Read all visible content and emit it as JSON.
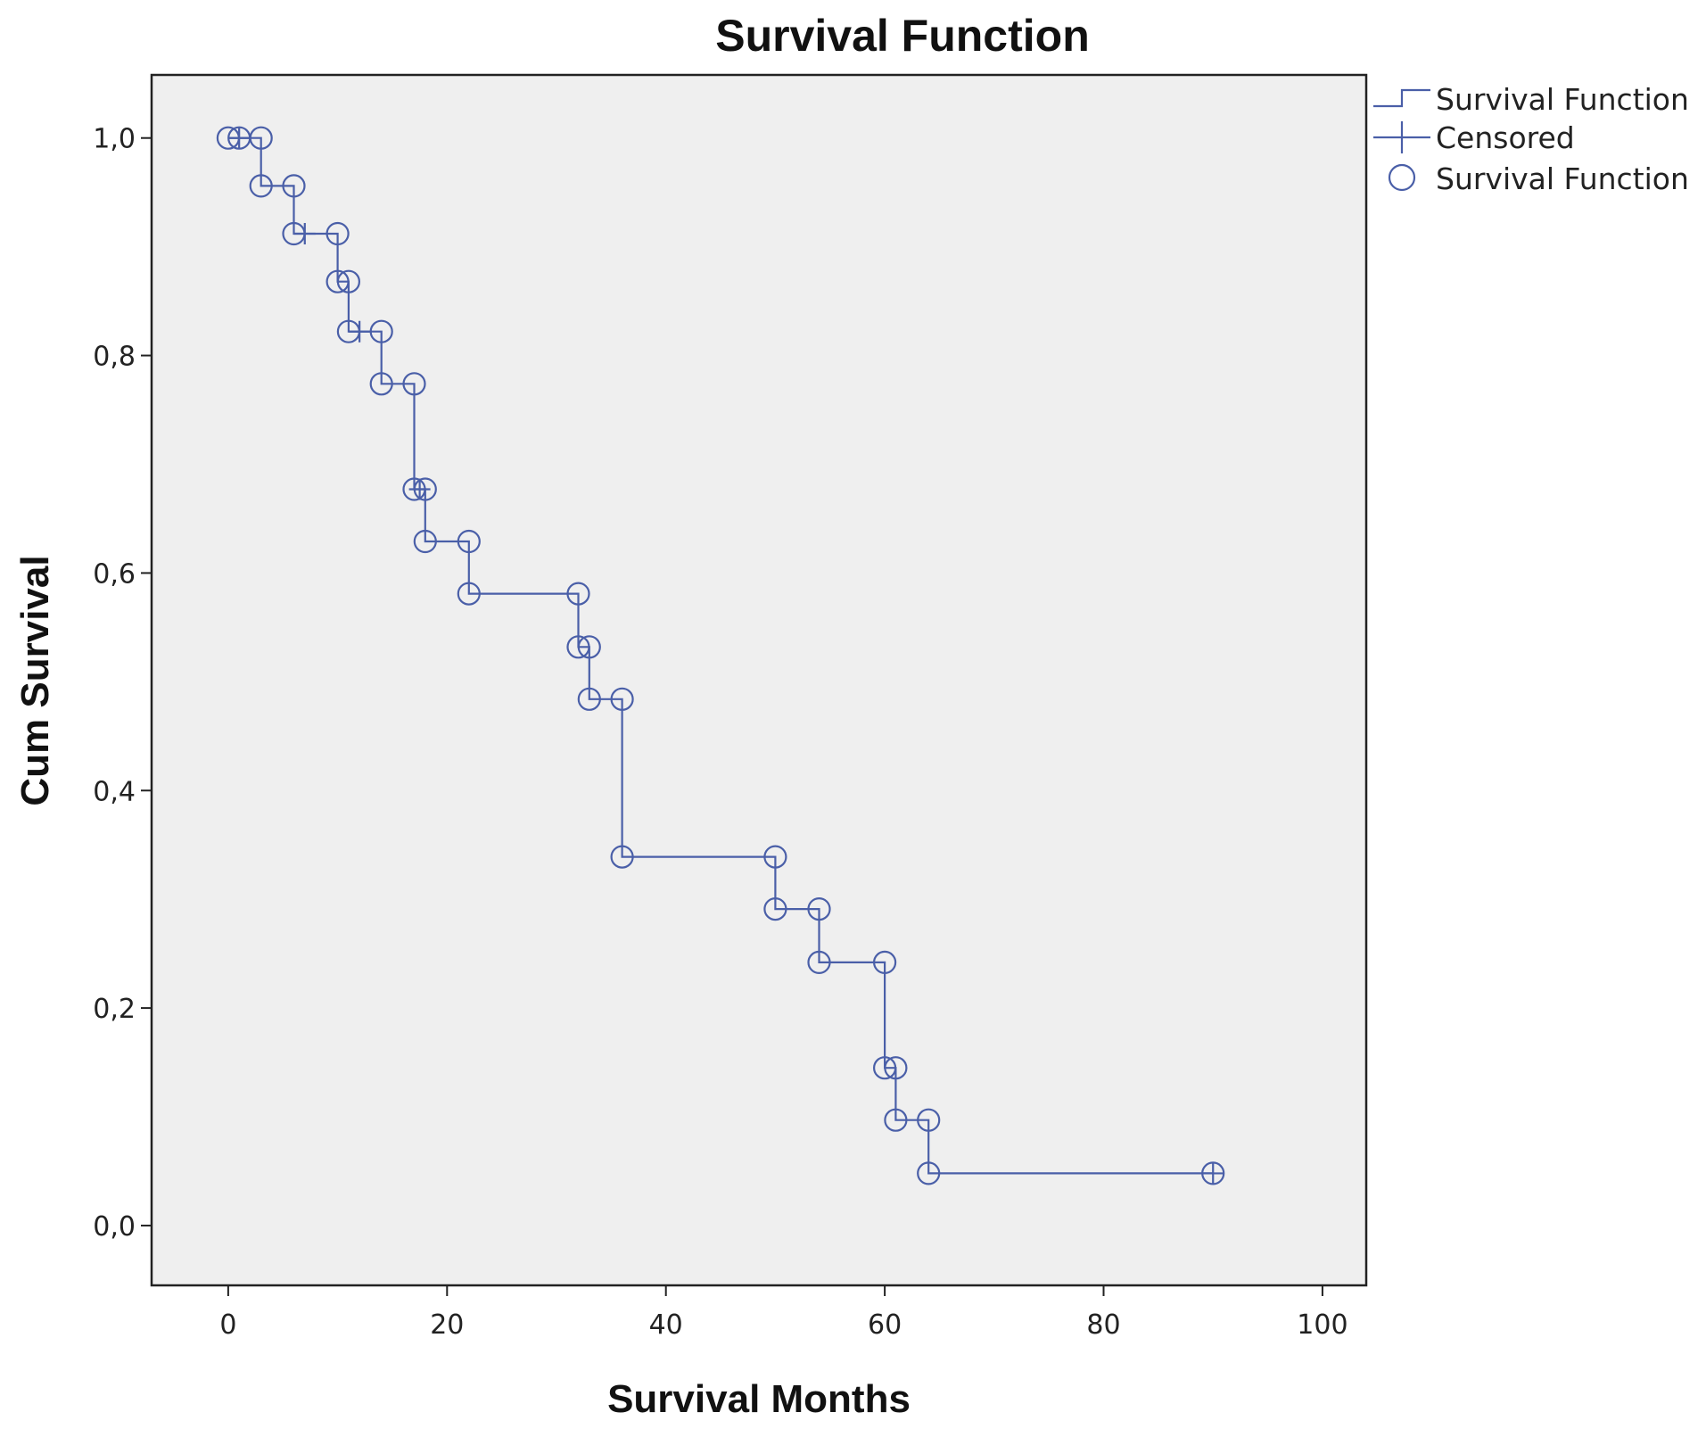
{
  "chart_data": {
    "type": "line",
    "title": "Survival Function",
    "xlabel": "Survival Months",
    "ylabel": "Cum Survival",
    "xlim": [
      -7,
      104
    ],
    "ylim": [
      -0.055,
      1.058
    ],
    "x_ticks": [
      0,
      20,
      40,
      60,
      80,
      100
    ],
    "x_tick_labels": [
      "0",
      "20",
      "40",
      "60",
      "80",
      "100"
    ],
    "y_ticks": [
      0.0,
      0.2,
      0.4,
      0.6,
      0.8,
      1.0
    ],
    "y_tick_labels": [
      "0,0",
      "0,2",
      "0,4",
      "0,6",
      "0,8",
      "1,0"
    ],
    "grid": false,
    "legend_position": "outside-top-right",
    "legend": [
      {
        "label": "Survival Function",
        "symbol": "step-line"
      },
      {
        "label": "Censored",
        "symbol": "plus"
      },
      {
        "label": "Survival Function",
        "symbol": "circle"
      }
    ],
    "colors": {
      "series": "#4a5fa8",
      "plot_background": "#efefef",
      "frame": "#222222"
    },
    "series": [
      {
        "name": "Survival Function",
        "step_points": [
          [
            0,
            1.0
          ],
          [
            3,
            1.0
          ],
          [
            3,
            0.956
          ],
          [
            6,
            0.956
          ],
          [
            6,
            0.912
          ],
          [
            10,
            0.912
          ],
          [
            10,
            0.868
          ],
          [
            11,
            0.868
          ],
          [
            11,
            0.822
          ],
          [
            14,
            0.822
          ],
          [
            14,
            0.774
          ],
          [
            17,
            0.774
          ],
          [
            17,
            0.677
          ],
          [
            18,
            0.677
          ],
          [
            18,
            0.629
          ],
          [
            22,
            0.629
          ],
          [
            22,
            0.581
          ],
          [
            32,
            0.581
          ],
          [
            32,
            0.532
          ],
          [
            33,
            0.532
          ],
          [
            33,
            0.484
          ],
          [
            36,
            0.484
          ],
          [
            36,
            0.339
          ],
          [
            50,
            0.339
          ],
          [
            50,
            0.291
          ],
          [
            54,
            0.291
          ],
          [
            54,
            0.242
          ],
          [
            60,
            0.242
          ],
          [
            60,
            0.145
          ],
          [
            61,
            0.145
          ],
          [
            61,
            0.097
          ],
          [
            64,
            0.097
          ],
          [
            64,
            0.048
          ],
          [
            90,
            0.048
          ]
        ]
      },
      {
        "name": "Survival Function",
        "marker": "circle",
        "points": [
          [
            0,
            1.0
          ],
          [
            1,
            1.0
          ],
          [
            3,
            1.0
          ],
          [
            3,
            0.956
          ],
          [
            6,
            0.956
          ],
          [
            6,
            0.912
          ],
          [
            10,
            0.912
          ],
          [
            10,
            0.868
          ],
          [
            11,
            0.868
          ],
          [
            11,
            0.822
          ],
          [
            14,
            0.822
          ],
          [
            14,
            0.774
          ],
          [
            17,
            0.774
          ],
          [
            17,
            0.677
          ],
          [
            18,
            0.677
          ],
          [
            18,
            0.629
          ],
          [
            22,
            0.629
          ],
          [
            22,
            0.581
          ],
          [
            32,
            0.581
          ],
          [
            32,
            0.532
          ],
          [
            33,
            0.532
          ],
          [
            33,
            0.484
          ],
          [
            36,
            0.484
          ],
          [
            36,
            0.339
          ],
          [
            50,
            0.339
          ],
          [
            50,
            0.291
          ],
          [
            54,
            0.291
          ],
          [
            54,
            0.242
          ],
          [
            60,
            0.242
          ],
          [
            60,
            0.145
          ],
          [
            61,
            0.145
          ],
          [
            61,
            0.097
          ],
          [
            64,
            0.097
          ],
          [
            64,
            0.048
          ],
          [
            90,
            0.048
          ]
        ]
      },
      {
        "name": "Censored",
        "marker": "plus",
        "points": [
          [
            1,
            1.0
          ],
          [
            7,
            0.912
          ],
          [
            12,
            0.822
          ],
          [
            17.5,
            0.677
          ],
          [
            90,
            0.048
          ]
        ]
      }
    ]
  }
}
